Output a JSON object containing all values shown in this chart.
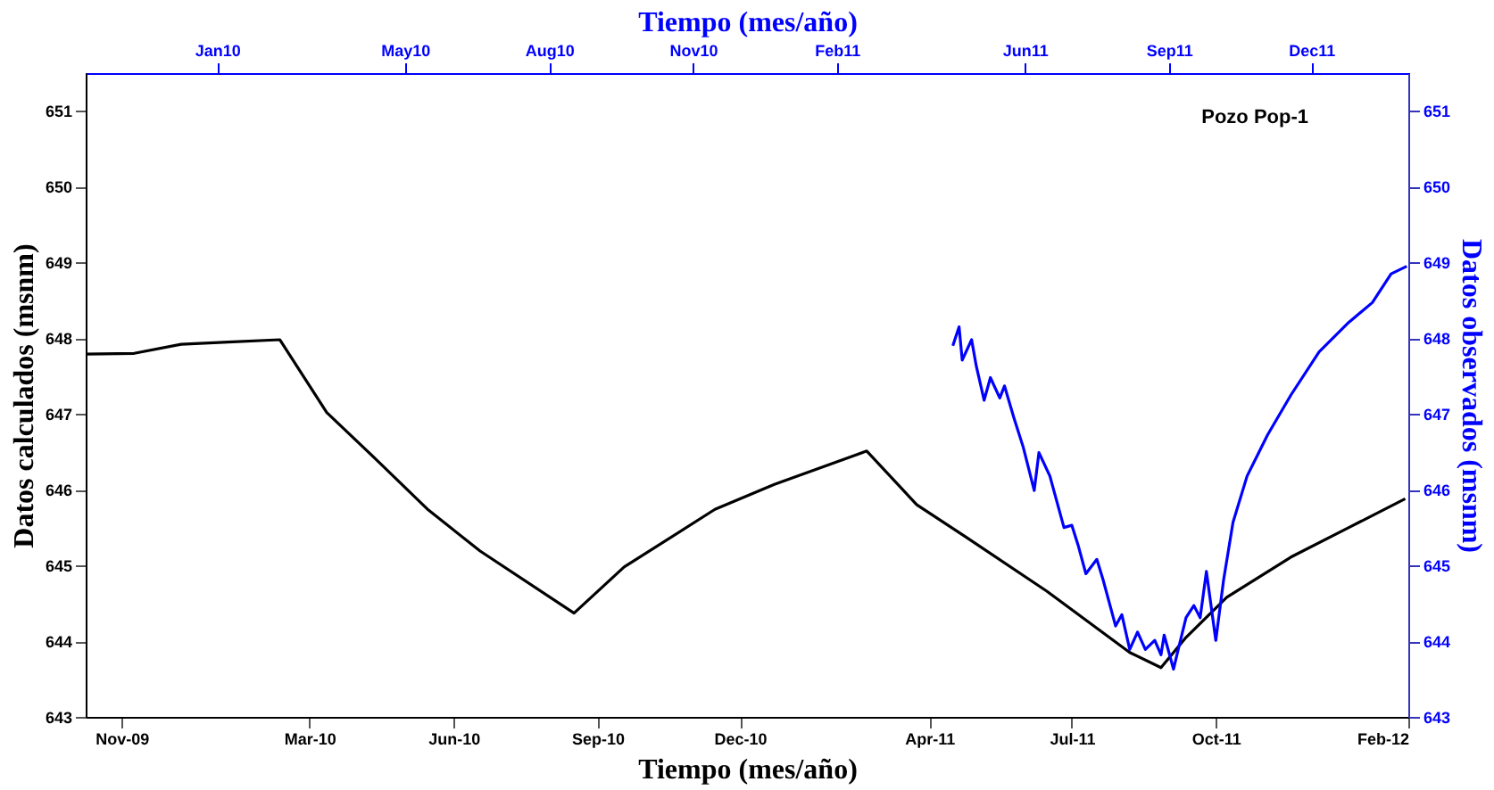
{
  "chart_data": {
    "type": "line",
    "xlabel": "Tiempo (mes/año)",
    "x2label": "Tiempo (mes/año)",
    "ylabel": "Datos calculados (msnm)",
    "y2label": "Datos observados (msnm)",
    "annotations": [
      "Pozo Pop-1"
    ],
    "xlim": [
      "2009-10-09",
      "2012-02-01"
    ],
    "xticks": [
      {
        "value": "2009-11-01",
        "label": "Nov-09"
      },
      {
        "value": "2010-03-01",
        "label": "Mar-10"
      },
      {
        "value": "2010-06-01",
        "label": "Jun-10"
      },
      {
        "value": "2010-09-01",
        "label": "Sep-10"
      },
      {
        "value": "2010-12-01",
        "label": "Dec-10"
      },
      {
        "value": "2011-04-01",
        "label": "Apr-11"
      },
      {
        "value": "2011-07-01",
        "label": "Jul-11"
      },
      {
        "value": "2011-10-01",
        "label": "Oct-11"
      },
      {
        "value": "2012-02-01",
        "label": "Feb-12"
      }
    ],
    "x2lim": [
      "2009-10-09",
      "2012-02-01"
    ],
    "x2ticks": [
      {
        "value": "2010-01-01",
        "label": "Jan10"
      },
      {
        "value": "2010-05-01",
        "label": "May10"
      },
      {
        "value": "2010-08-01",
        "label": "Aug10"
      },
      {
        "value": "2010-11-01",
        "label": "Nov10"
      },
      {
        "value": "2011-02-01",
        "label": "Feb11"
      },
      {
        "value": "2011-06-01",
        "label": "Jun11"
      },
      {
        "value": "2011-09-01",
        "label": "Sep11"
      },
      {
        "value": "2011-12-01",
        "label": "Dec11"
      }
    ],
    "ylim": [
      643,
      651.5
    ],
    "yticks": [
      643,
      644,
      645,
      646,
      647,
      648,
      649,
      650,
      651
    ],
    "y2lim": [
      643,
      651.5
    ],
    "y2ticks": [
      643,
      644,
      645,
      646,
      647,
      648,
      649,
      650,
      651
    ],
    "grid": false,
    "marker": "none",
    "line_style": "solid",
    "series": [
      {
        "color": "#000000",
        "x": [
          "2009-10-09",
          "2009-11-09",
          "2009-12-09",
          "2010-01-08",
          "2010-02-10",
          "2010-03-12",
          "2010-04-12",
          "2010-05-16",
          "2010-06-18",
          "2010-08-17",
          "2010-09-18",
          "2010-11-15",
          "2010-12-23",
          "2011-02-20",
          "2011-03-24",
          "2011-04-24",
          "2011-06-15",
          "2011-08-07",
          "2011-08-27",
          "2011-09-12",
          "2011-10-08",
          "2011-11-18",
          "2011-12-25",
          "2012-01-30"
        ],
        "values": [
          647.79,
          647.8,
          647.92,
          647.95,
          647.98,
          647.02,
          646.41,
          645.73,
          645.19,
          644.37,
          644.98,
          645.74,
          646.07,
          646.51,
          645.8,
          645.38,
          644.66,
          643.85,
          643.65,
          644.05,
          644.58,
          645.11,
          645.5,
          645.88
        ]
      },
      {
        "color": "#0000ff",
        "axis": "y2",
        "x": [
          "2011-04-16",
          "2011-04-20",
          "2011-04-22",
          "2011-04-28",
          "2011-05-01",
          "2011-05-06",
          "2011-05-10",
          "2011-05-16",
          "2011-05-19",
          "2011-05-25",
          "2011-05-31",
          "2011-06-07",
          "2011-06-10",
          "2011-06-17",
          "2011-06-26",
          "2011-07-01",
          "2011-07-05",
          "2011-07-10",
          "2011-07-17",
          "2011-07-21",
          "2011-07-29",
          "2011-08-02",
          "2011-08-07",
          "2011-08-12",
          "2011-08-17",
          "2011-08-23",
          "2011-08-27",
          "2011-08-29",
          "2011-09-04",
          "2011-09-07",
          "2011-09-12",
          "2011-09-17",
          "2011-09-21",
          "2011-09-25",
          "2011-10-01",
          "2011-10-06",
          "2011-10-12",
          "2011-10-21",
          "2011-11-03",
          "2011-11-18",
          "2011-12-06",
          "2011-12-25",
          "2012-01-09",
          "2012-01-21",
          "2012-01-31"
        ],
        "values": [
          647.9,
          648.15,
          647.71,
          647.98,
          647.63,
          647.18,
          647.48,
          647.21,
          647.37,
          646.95,
          646.56,
          645.99,
          646.49,
          646.18,
          645.5,
          645.53,
          645.27,
          644.89,
          645.08,
          644.81,
          644.2,
          644.35,
          643.89,
          644.12,
          643.89,
          644.01,
          643.82,
          644.08,
          643.63,
          643.89,
          644.31,
          644.47,
          644.31,
          644.92,
          644.01,
          644.81,
          645.57,
          646.18,
          646.72,
          647.25,
          647.82,
          648.21,
          648.47,
          648.85,
          648.95
        ]
      }
    ]
  }
}
